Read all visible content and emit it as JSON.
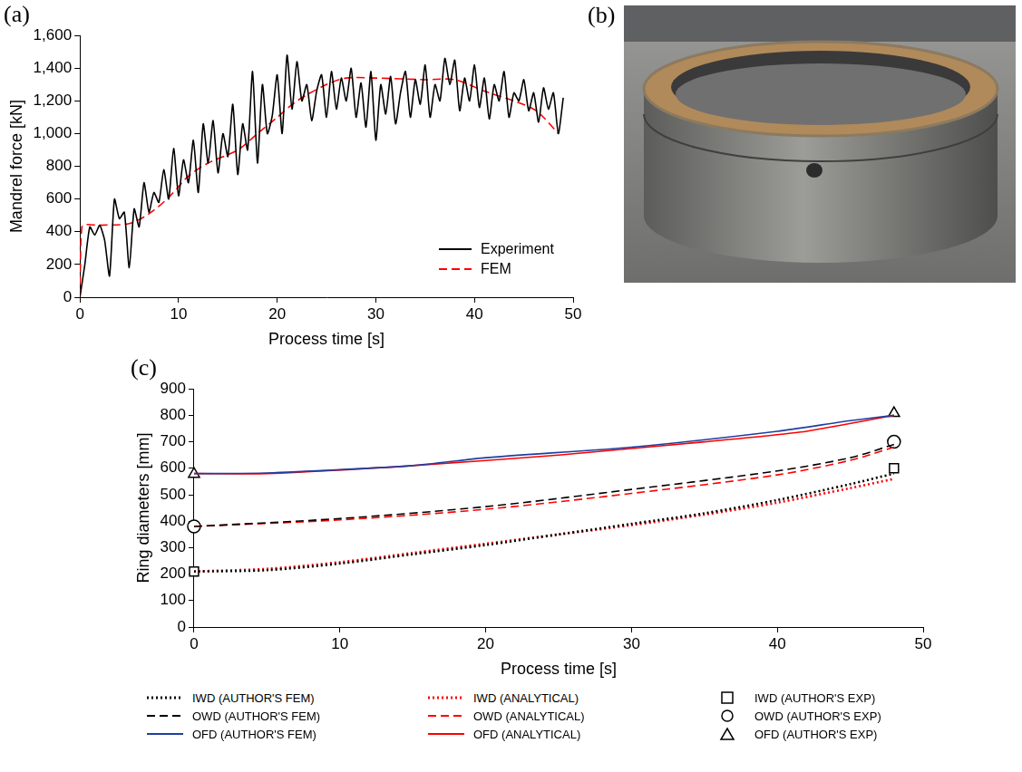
{
  "chart_data": [
    {
      "type": "line",
      "title": "(a)",
      "x_label": "Process time [s]",
      "y_label": "Mandrel force [kN]",
      "xlim": [
        0,
        50
      ],
      "xticks": [
        0,
        10,
        20,
        30,
        40,
        50
      ],
      "ylim": [
        0,
        1600
      ],
      "yticks": [
        0,
        200,
        400,
        600,
        800,
        {
          "value": 1000,
          "label": "1,000"
        },
        {
          "value": 1200,
          "label": "1,200"
        },
        {
          "value": 1400,
          "label": "1,400"
        },
        {
          "value": 1600,
          "label": "1,600"
        }
      ],
      "grid": false,
      "legend": "lower right",
      "series": [
        {
          "name": "Experiment",
          "color": "#000000",
          "line_style": "solid",
          "x": [
            0,
            0.5,
            1,
            1.5,
            2,
            2.5,
            3,
            3.5,
            4,
            4.5,
            5,
            5.5,
            6,
            6.5,
            7,
            7.5,
            8,
            8.5,
            9,
            9.5,
            10,
            10.5,
            11,
            11.5,
            12,
            12.5,
            13,
            13.5,
            14,
            14.5,
            15,
            15.5,
            16,
            16.5,
            17,
            17.5,
            18,
            18.5,
            19,
            19.5,
            20,
            20.5,
            21,
            21.5,
            22,
            22.5,
            23,
            23.5,
            24,
            24.5,
            25,
            25.5,
            26,
            26.5,
            27,
            27.5,
            28,
            28.5,
            29,
            29.5,
            30,
            30.5,
            31,
            31.5,
            32,
            32.5,
            33,
            33.5,
            34,
            34.5,
            35,
            35.5,
            36,
            36.5,
            37,
            37.5,
            38,
            38.5,
            39,
            39.5,
            40,
            40.5,
            41,
            41.5,
            42,
            42.5,
            43,
            43.5,
            44,
            44.5,
            45,
            45.5,
            46,
            46.5,
            47,
            47.5,
            48,
            48.5,
            49
          ],
          "values": [
            0,
            200,
            430,
            380,
            440,
            350,
            130,
            600,
            480,
            520,
            180,
            540,
            430,
            700,
            520,
            640,
            580,
            780,
            600,
            910,
            620,
            840,
            700,
            960,
            640,
            1060,
            820,
            1080,
            760,
            1000,
            860,
            1180,
            750,
            1060,
            900,
            1380,
            820,
            1300,
            1000,
            1110,
            1360,
            1000,
            1480,
            1150,
            1440,
            1200,
            1300,
            1080,
            1260,
            1360,
            1100,
            1380,
            1150,
            1340,
            1200,
            1400,
            1100,
            1310,
            1040,
            1380,
            960,
            1300,
            1120,
            1350,
            1060,
            1250,
            1380,
            1100,
            1330,
            1180,
            1420,
            1100,
            1300,
            1200,
            1460,
            1300,
            1450,
            1140,
            1340,
            1200,
            1420,
            1160,
            1340,
            1090,
            1300,
            1200,
            1380,
            1100,
            1250,
            1200,
            1330,
            1140,
            1250,
            1070,
            1280,
            1150,
            1250,
            1000,
            1220
          ]
        },
        {
          "name": "FEM",
          "color": "#ff0000",
          "line_style": "dashed",
          "x": [
            0,
            0.2,
            2,
            5,
            7,
            9,
            11,
            13,
            16,
            18,
            20,
            22,
            25,
            27,
            30,
            35,
            38,
            41,
            44,
            46,
            47,
            48.5
          ],
          "values": [
            0,
            430,
            440,
            450,
            510,
            610,
            740,
            820,
            900,
            1000,
            1100,
            1200,
            1300,
            1340,
            1340,
            1330,
            1330,
            1260,
            1200,
            1150,
            1100,
            1000
          ]
        }
      ]
    },
    {
      "type": "line",
      "title": "(c)",
      "x_label": "Process time [s]",
      "y_label": "Ring diameters [mm]",
      "xlim": [
        0,
        50
      ],
      "xticks": [
        0,
        10,
        20,
        30,
        40,
        50
      ],
      "ylim": [
        0,
        900
      ],
      "yticks": [
        0,
        100,
        200,
        300,
        400,
        500,
        600,
        700,
        800,
        900
      ],
      "grid": false,
      "legend": "bottom",
      "series": [
        {
          "name": "IWD (AUTHOR'S FEM)",
          "color": "#000000",
          "line_style": "dotted",
          "marker": "none",
          "x": [
            0,
            5,
            10,
            15,
            20,
            25,
            30,
            35,
            40,
            45,
            48
          ],
          "values": [
            210,
            215,
            240,
            275,
            310,
            350,
            390,
            430,
            480,
            540,
            580
          ]
        },
        {
          "name": "IWD (ANALYTICAL)",
          "color": "#ff0000",
          "line_style": "dotted",
          "marker": "none",
          "x": [
            0,
            5,
            10,
            15,
            20,
            25,
            30,
            35,
            40,
            45,
            48
          ],
          "values": [
            210,
            220,
            245,
            280,
            315,
            350,
            385,
            425,
            470,
            525,
            560
          ]
        },
        {
          "name": "IWD (AUTHOR'S EXP)",
          "color": "#000000",
          "line_style": "none",
          "marker": "square",
          "x": [
            0,
            48
          ],
          "values": [
            210,
            600
          ]
        },
        {
          "name": "OWD (AUTHOR'S FEM)",
          "color": "#000000",
          "line_style": "dashed",
          "marker": "none",
          "x": [
            0,
            10,
            20,
            30,
            40,
            45,
            48
          ],
          "values": [
            380,
            410,
            455,
            520,
            590,
            640,
            690
          ]
        },
        {
          "name": "OWD (ANALYTICAL)",
          "color": "#ff0000",
          "line_style": "dashed",
          "marker": "none",
          "x": [
            0,
            10,
            20,
            30,
            40,
            45,
            48
          ],
          "values": [
            380,
            405,
            445,
            505,
            575,
            630,
            680
          ]
        },
        {
          "name": "OWD (AUTHOR'S EXP)",
          "color": "#000000",
          "line_style": "none",
          "marker": "circle",
          "x": [
            0,
            48
          ],
          "values": [
            380,
            700
          ]
        },
        {
          "name": "OFD (AUTHOR'S FEM)",
          "color": "#1f3f9f",
          "line_style": "solid",
          "marker": "none",
          "x": [
            0,
            5,
            15,
            20,
            30,
            40,
            45,
            48
          ],
          "values": [
            580,
            582,
            610,
            640,
            680,
            740,
            780,
            800
          ]
        },
        {
          "name": "OFD (ANALYTICAL)",
          "color": "#ff0000",
          "line_style": "solid",
          "marker": "none",
          "x": [
            0,
            5,
            15,
            25,
            35,
            42,
            48
          ],
          "values": [
            580,
            580,
            610,
            650,
            700,
            740,
            800
          ]
        },
        {
          "name": "OFD (AUTHOR'S EXP)",
          "color": "#000000",
          "line_style": "none",
          "marker": "triangle",
          "x": [
            0,
            48
          ],
          "values": [
            578,
            808
          ]
        }
      ]
    }
  ],
  "photo": {
    "label": "(b)"
  }
}
